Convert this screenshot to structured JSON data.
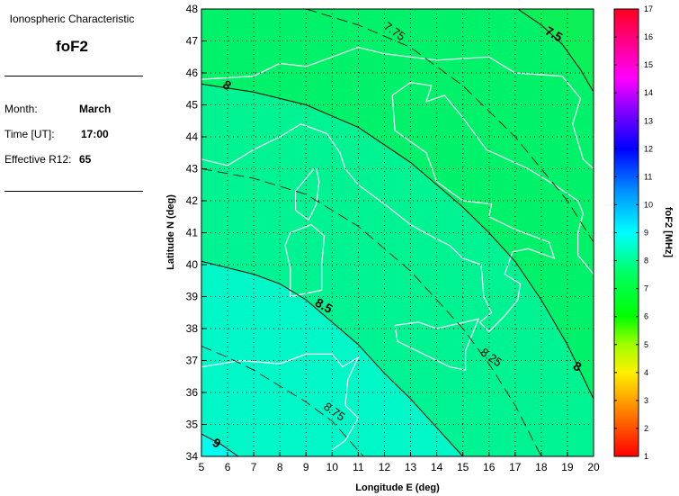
{
  "info_panel": {
    "title": "Ionospheric Characteristic",
    "parameter": "foF2",
    "fields": [
      {
        "label": "Month:",
        "value": "March"
      },
      {
        "label": "Time [UT]:",
        "value": "17:00"
      },
      {
        "label": "Effective R12:",
        "value": "65"
      }
    ]
  },
  "chart_data": {
    "type": "contour-map",
    "xlabel": "Longitude E (deg)",
    "ylabel": "Latitude N (deg)",
    "xlim": [
      5,
      20
    ],
    "ylim": [
      34,
      48
    ],
    "xticks": [
      5,
      6,
      7,
      8,
      9,
      10,
      11,
      12,
      13,
      14,
      15,
      16,
      17,
      18,
      19,
      20
    ],
    "yticks": [
      34,
      35,
      36,
      37,
      38,
      39,
      40,
      41,
      42,
      43,
      44,
      45,
      46,
      47,
      48
    ],
    "grid": true,
    "contours": [
      {
        "level": 7.5,
        "style": "solid",
        "label": "7.5",
        "label_at": [
          18.4,
          47.1
        ],
        "points": [
          [
            17.1,
            48
          ],
          [
            18.0,
            47.5
          ],
          [
            18.8,
            46.9
          ],
          [
            19.5,
            46.1
          ],
          [
            20,
            45.4
          ]
        ]
      },
      {
        "level": 7.75,
        "style": "dashed",
        "label": "7.75",
        "label_at": [
          12.3,
          47.2
        ],
        "points": [
          [
            9,
            48
          ],
          [
            11,
            47.5
          ],
          [
            13,
            46.8
          ],
          [
            15,
            45.6
          ],
          [
            17,
            44.0
          ],
          [
            19,
            42.0
          ],
          [
            20,
            40.7
          ]
        ]
      },
      {
        "level": 8,
        "style": "solid",
        "label": "8",
        "label_at": [
          5.9,
          45.5
        ],
        "label2": "8",
        "label2_at": [
          19.3,
          36.7
        ],
        "points": [
          [
            5,
            45.65
          ],
          [
            7,
            45.4
          ],
          [
            9,
            45.0
          ],
          [
            11,
            44.3
          ],
          [
            13,
            43.2
          ],
          [
            15,
            41.8
          ],
          [
            16,
            41.0
          ],
          [
            17,
            40.1
          ],
          [
            18,
            38.9
          ],
          [
            19,
            37.5
          ],
          [
            20,
            35.8
          ]
        ]
      },
      {
        "level": 8.25,
        "style": "dashed",
        "label": "8.25",
        "label_at": [
          16.0,
          37.0
        ],
        "points": [
          [
            5,
            43.0
          ],
          [
            7,
            42.7
          ],
          [
            9,
            42.2
          ],
          [
            11,
            41.2
          ],
          [
            12,
            40.5
          ],
          [
            13,
            39.8
          ],
          [
            14,
            38.9
          ],
          [
            15,
            38.0
          ],
          [
            16,
            36.9
          ],
          [
            17,
            35.6
          ],
          [
            18,
            34.0
          ]
        ]
      },
      {
        "level": 8.5,
        "style": "solid",
        "label": "8.5",
        "label_at": [
          9.6,
          38.6
        ],
        "points": [
          [
            5,
            40.1
          ],
          [
            7,
            39.7
          ],
          [
            8,
            39.4
          ],
          [
            9,
            38.9
          ],
          [
            10,
            38.2
          ],
          [
            11,
            37.5
          ],
          [
            12,
            36.6
          ],
          [
            13,
            35.8
          ],
          [
            14,
            34.9
          ],
          [
            15,
            34.0
          ]
        ]
      },
      {
        "level": 8.75,
        "style": "dashed",
        "label": "8.75",
        "label_at": [
          10.0,
          35.3
        ],
        "points": [
          [
            5,
            37.45
          ],
          [
            6,
            37.1
          ],
          [
            7,
            36.7
          ],
          [
            8,
            36.2
          ],
          [
            9,
            35.7
          ],
          [
            10,
            35.1
          ],
          [
            11.2,
            34.0
          ]
        ]
      },
      {
        "level": 9,
        "style": "solid",
        "label": "9",
        "label_at": [
          5.5,
          34.3
        ],
        "points": [
          [
            5,
            34.7
          ],
          [
            5.8,
            34.35
          ],
          [
            6.4,
            34.0
          ]
        ]
      }
    ],
    "region_colors": {
      "below_7.5": "#0cf058",
      "7.5_8": "#00f26a",
      "8_8.5": "#00f392",
      "8.5_9": "#00f8c8",
      "above_9": "#00ffee"
    },
    "coastline_color": "#ffffff",
    "colorbar": {
      "label": "foF2 [MHz]",
      "range": [
        1,
        17
      ],
      "ticks": [
        1,
        2,
        3,
        4,
        5,
        6,
        7,
        8,
        9,
        10,
        11,
        12,
        13,
        14,
        15,
        16,
        17
      ],
      "stops": [
        {
          "v": 1,
          "c": "#ff0000"
        },
        {
          "v": 3,
          "c": "#ffa000"
        },
        {
          "v": 4,
          "c": "#fff000"
        },
        {
          "v": 5,
          "c": "#a0ff00"
        },
        {
          "v": 6,
          "c": "#00ff00"
        },
        {
          "v": 7.5,
          "c": "#00ff60"
        },
        {
          "v": 9,
          "c": "#00ffff"
        },
        {
          "v": 10.5,
          "c": "#0090ff"
        },
        {
          "v": 12,
          "c": "#0000ff"
        },
        {
          "v": 13.5,
          "c": "#9000ff"
        },
        {
          "v": 14.5,
          "c": "#ff00ff"
        },
        {
          "v": 17,
          "c": "#ff0020"
        }
      ]
    }
  }
}
